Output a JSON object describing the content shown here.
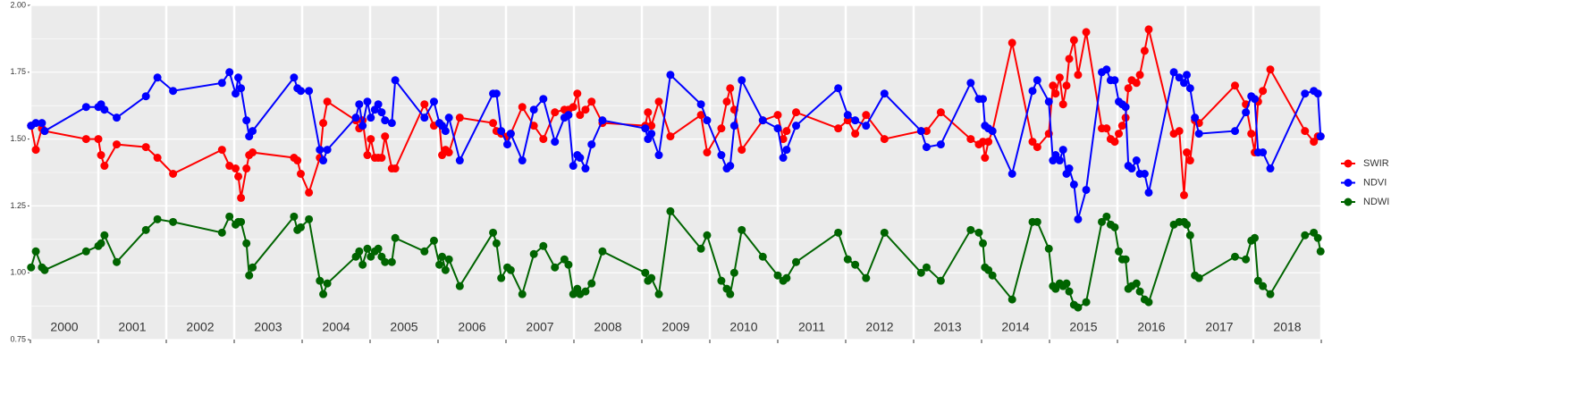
{
  "chart_data": {
    "type": "line",
    "x": [
      2000.01,
      2000.08,
      2000.17,
      2000.21,
      2000.82,
      2001.0,
      2001.04,
      2001.09,
      2001.27,
      2001.7,
      2001.87,
      2002.1,
      2002.82,
      2002.93,
      2003.02,
      2003.06,
      2003.1,
      2003.18,
      2003.22,
      2003.27,
      2003.88,
      2003.93,
      2003.98,
      2004.1,
      2004.26,
      2004.31,
      2004.37,
      2004.79,
      2004.84,
      2004.89,
      2004.96,
      2005.01,
      2005.07,
      2005.12,
      2005.17,
      2005.22,
      2005.32,
      2005.37,
      2005.8,
      2005.94,
      2006.02,
      2006.06,
      2006.11,
      2006.16,
      2006.32,
      2006.81,
      2006.86,
      2006.93,
      2007.02,
      2007.07,
      2007.24,
      2007.41,
      2007.55,
      2007.72,
      2007.86,
      2007.92,
      2007.99,
      2008.05,
      2008.09,
      2008.17,
      2008.26,
      2008.42,
      2009.05,
      2009.09,
      2009.14,
      2009.25,
      2009.42,
      2009.87,
      2009.96,
      2010.17,
      2010.25,
      2010.3,
      2010.36,
      2010.47,
      2010.78,
      2011.0,
      2011.08,
      2011.13,
      2011.27,
      2011.89,
      2012.03,
      2012.14,
      2012.3,
      2012.57,
      2013.11,
      2013.19,
      2013.4,
      2013.84,
      2013.96,
      2014.02,
      2014.05,
      2014.1,
      2014.16,
      2014.45,
      2014.75,
      2014.82,
      2014.99,
      2015.05,
      2015.09,
      2015.15,
      2015.2,
      2015.25,
      2015.29,
      2015.36,
      2015.42,
      2015.54,
      2015.77,
      2015.84,
      2015.9,
      2015.96,
      2016.02,
      2016.07,
      2016.12,
      2016.16,
      2016.21,
      2016.28,
      2016.33,
      2016.4,
      2016.46,
      2016.83,
      2016.91,
      2016.98,
      2017.02,
      2017.07,
      2017.14,
      2017.2,
      2017.73,
      2017.89,
      2017.97,
      2018.02,
      2018.07,
      2018.14,
      2018.25,
      2018.76,
      2018.89,
      2018.95,
      2018.99
    ],
    "series": [
      {
        "name": "SWIR",
        "color": "#ff0000",
        "values": [
          1.55,
          1.46,
          1.54,
          1.53,
          1.5,
          1.5,
          1.44,
          1.4,
          1.48,
          1.47,
          1.43,
          1.37,
          1.46,
          1.4,
          1.39,
          1.36,
          1.28,
          1.39,
          1.44,
          1.45,
          1.43,
          1.42,
          1.37,
          1.3,
          1.43,
          1.56,
          1.64,
          1.57,
          1.54,
          1.57,
          1.44,
          1.5,
          1.43,
          1.43,
          1.43,
          1.51,
          1.39,
          1.39,
          1.63,
          1.55,
          1.56,
          1.44,
          1.46,
          1.45,
          1.58,
          1.56,
          1.53,
          1.52,
          1.51,
          1.52,
          1.62,
          1.55,
          1.5,
          1.6,
          1.61,
          1.61,
          1.62,
          1.67,
          1.59,
          1.61,
          1.64,
          1.56,
          1.55,
          1.6,
          1.55,
          1.64,
          1.51,
          1.59,
          1.45,
          1.54,
          1.64,
          1.69,
          1.61,
          1.46,
          1.57,
          1.59,
          1.5,
          1.53,
          1.6,
          1.54,
          1.57,
          1.52,
          1.59,
          1.5,
          1.53,
          1.53,
          1.6,
          1.5,
          1.48,
          1.49,
          1.43,
          1.49,
          1.53,
          1.86,
          1.49,
          1.47,
          1.52,
          1.7,
          1.67,
          1.73,
          1.63,
          1.7,
          1.8,
          1.87,
          1.74,
          1.9,
          1.54,
          1.54,
          1.5,
          1.49,
          1.52,
          1.55,
          1.58,
          1.69,
          1.72,
          1.71,
          1.74,
          1.83,
          1.91,
          1.52,
          1.53,
          1.29,
          1.45,
          1.42,
          1.57,
          1.56,
          1.7,
          1.63,
          1.52,
          1.45,
          1.64,
          1.68,
          1.76,
          1.53,
          1.49,
          1.51,
          1.51
        ]
      },
      {
        "name": "NDVI",
        "color": "#0000ff",
        "values": [
          1.55,
          1.56,
          1.56,
          1.53,
          1.62,
          1.62,
          1.63,
          1.61,
          1.58,
          1.66,
          1.73,
          1.68,
          1.71,
          1.75,
          1.67,
          1.73,
          1.69,
          1.57,
          1.51,
          1.53,
          1.73,
          1.69,
          1.68,
          1.68,
          1.46,
          1.42,
          1.46,
          1.58,
          1.63,
          1.55,
          1.64,
          1.58,
          1.61,
          1.63,
          1.6,
          1.57,
          1.56,
          1.72,
          1.58,
          1.64,
          1.56,
          1.55,
          1.53,
          1.58,
          1.42,
          1.67,
          1.67,
          1.53,
          1.48,
          1.52,
          1.42,
          1.61,
          1.65,
          1.49,
          1.58,
          1.59,
          1.4,
          1.44,
          1.43,
          1.39,
          1.48,
          1.57,
          1.54,
          1.5,
          1.52,
          1.44,
          1.74,
          1.63,
          1.57,
          1.44,
          1.39,
          1.4,
          1.55,
          1.72,
          1.57,
          1.54,
          1.43,
          1.46,
          1.55,
          1.69,
          1.59,
          1.57,
          1.55,
          1.67,
          1.53,
          1.47,
          1.48,
          1.71,
          1.65,
          1.65,
          1.55,
          1.54,
          1.53,
          1.37,
          1.68,
          1.72,
          1.64,
          1.42,
          1.44,
          1.42,
          1.46,
          1.37,
          1.39,
          1.33,
          1.2,
          1.31,
          1.75,
          1.76,
          1.72,
          1.72,
          1.64,
          1.63,
          1.62,
          1.4,
          1.39,
          1.42,
          1.37,
          1.37,
          1.3,
          1.75,
          1.73,
          1.71,
          1.74,
          1.69,
          1.58,
          1.52,
          1.53,
          1.6,
          1.66,
          1.65,
          1.45,
          1.45,
          1.39,
          1.67,
          1.68,
          1.67,
          1.51
        ]
      },
      {
        "name": "NDWI",
        "color": "#006400",
        "values": [
          1.02,
          1.08,
          1.02,
          1.01,
          1.08,
          1.1,
          1.11,
          1.14,
          1.04,
          1.16,
          1.2,
          1.19,
          1.15,
          1.21,
          1.18,
          1.19,
          1.19,
          1.11,
          0.99,
          1.02,
          1.21,
          1.16,
          1.17,
          1.2,
          0.97,
          0.92,
          0.96,
          1.06,
          1.08,
          1.03,
          1.09,
          1.06,
          1.08,
          1.09,
          1.06,
          1.04,
          1.04,
          1.13,
          1.08,
          1.12,
          1.03,
          1.06,
          1.01,
          1.05,
          0.95,
          1.15,
          1.11,
          0.98,
          1.02,
          1.01,
          0.92,
          1.07,
          1.1,
          1.02,
          1.05,
          1.03,
          0.92,
          0.94,
          0.92,
          0.93,
          0.96,
          1.08,
          1.0,
          0.97,
          0.98,
          0.92,
          1.23,
          1.09,
          1.14,
          0.97,
          0.94,
          0.92,
          1.0,
          1.16,
          1.06,
          0.99,
          0.97,
          0.98,
          1.04,
          1.15,
          1.05,
          1.03,
          0.98,
          1.15,
          1.0,
          1.02,
          0.97,
          1.16,
          1.15,
          1.11,
          1.02,
          1.01,
          0.99,
          0.9,
          1.19,
          1.19,
          1.09,
          0.95,
          0.94,
          0.96,
          0.95,
          0.96,
          0.93,
          0.88,
          0.87,
          0.89,
          1.19,
          1.21,
          1.18,
          1.17,
          1.08,
          1.05,
          1.05,
          0.94,
          0.95,
          0.96,
          0.93,
          0.9,
          0.89,
          1.18,
          1.19,
          1.19,
          1.18,
          1.14,
          0.99,
          0.98,
          1.06,
          1.05,
          1.12,
          1.13,
          0.97,
          0.95,
          0.92,
          1.14,
          1.15,
          1.13,
          1.08
        ]
      }
    ],
    "xlim": [
      2000,
      2019
    ],
    "xticks": [
      2000,
      2001,
      2002,
      2003,
      2004,
      2005,
      2006,
      2007,
      2008,
      2009,
      2010,
      2011,
      2012,
      2013,
      2014,
      2015,
      2016,
      2017,
      2018,
      2019
    ],
    "year_labels": [
      2000,
      2001,
      2002,
      2003,
      2004,
      2005,
      2006,
      2007,
      2008,
      2009,
      2010,
      2011,
      2012,
      2013,
      2014,
      2015,
      2016,
      2017,
      2018
    ],
    "ylim": [
      0.75,
      2
    ],
    "yticks": [
      0.75,
      {
        "value": 1,
        "label": "1.00"
      },
      1.25,
      {
        "value": 1.5,
        "label": "1.50"
      },
      1.75,
      {
        "value": 2,
        "label": "2.00"
      }
    ],
    "grid": true,
    "legend": "right"
  }
}
